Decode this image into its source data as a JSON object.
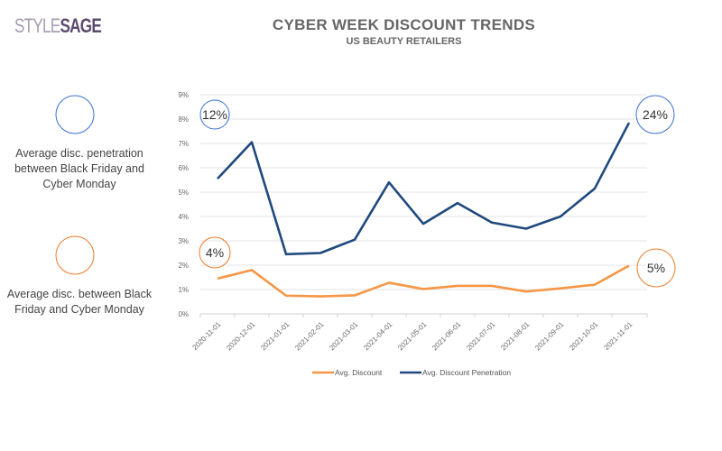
{
  "logo": {
    "part1": "STYLE",
    "part2": "SAGE"
  },
  "header": {
    "title": "CYBER WEEK DISCOUNT TRENDS",
    "subtitle": "US BEAUTY RETAILERS"
  },
  "side_legend": [
    {
      "text": "Average disc. penetration between Black Friday and Cyber Monday",
      "color": "#3b6fd1"
    },
    {
      "text": "Average disc. between Black Friday and Cyber Monday",
      "color": "#f07a2a"
    }
  ],
  "annotations": {
    "penetration_start": "12%",
    "penetration_end": "24%",
    "discount_start": "4%",
    "discount_end": "5%"
  },
  "chart_data": {
    "type": "line",
    "x": [
      "2020-11-01",
      "2020-12-01",
      "2021-01-01",
      "2021-02-01",
      "2021-03-01",
      "2021-04-01",
      "2021-05-01",
      "2021-06-01",
      "2021-07-01",
      "2021-08-01",
      "2021-09-01",
      "2021-10-01",
      "2021-11-01"
    ],
    "series": [
      {
        "name": "Avg. Discount",
        "color": "#f79646",
        "values": [
          1.45,
          1.8,
          0.75,
          0.72,
          0.76,
          1.28,
          1.02,
          1.15,
          1.15,
          0.92,
          1.05,
          1.2,
          1.98
        ]
      },
      {
        "name": "Avg. Discount Penetration",
        "color": "#1f497d",
        "values": [
          5.55,
          7.05,
          2.45,
          2.5,
          3.05,
          5.4,
          3.7,
          4.55,
          3.75,
          3.5,
          4.0,
          5.15,
          7.85
        ]
      }
    ],
    "yticks": [
      "0%",
      "1%",
      "2%",
      "3%",
      "4%",
      "5%",
      "6%",
      "7%",
      "8%",
      "9%"
    ],
    "ylim": [
      0,
      9
    ],
    "grid": true,
    "legend": "bottom"
  }
}
